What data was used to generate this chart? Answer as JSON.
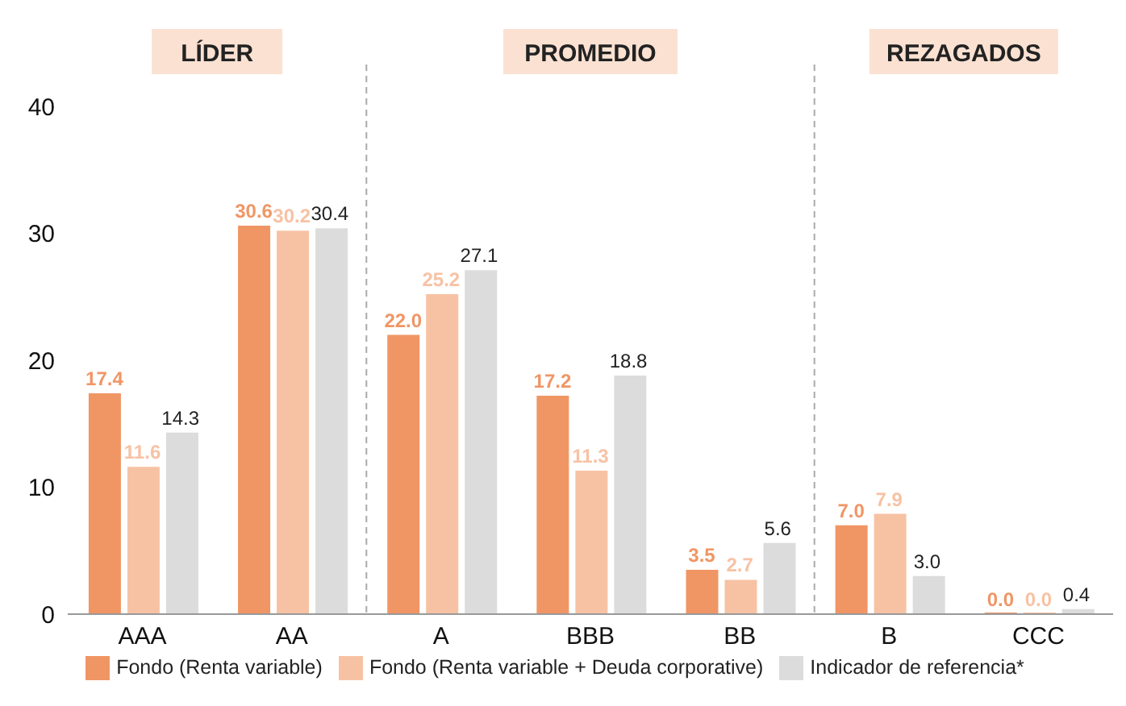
{
  "chart_data": {
    "type": "bar",
    "categories": [
      "AAA",
      "AA",
      "A",
      "BBB",
      "BB",
      "B",
      "CCC"
    ],
    "series": [
      {
        "name": "Fondo (Renta variable)",
        "color": "#f09665",
        "values": [
          17.4,
          30.6,
          22.0,
          17.2,
          3.5,
          7.0,
          0
        ],
        "value_labels": [
          "17.4",
          "30.6",
          "22.0",
          "17.2",
          "3.5",
          "7.0",
          "0.0"
        ]
      },
      {
        "name": "Fondo (Renta variable + Deuda corporative)",
        "color": "#f7c2a4",
        "values": [
          11.6,
          30.2,
          25.2,
          11.3,
          2.7,
          7.9,
          0
        ],
        "value_labels": [
          "11.6",
          "30.2",
          "25.2",
          "11.3",
          "2.7",
          "7.9",
          "0.0"
        ]
      },
      {
        "name": "Indicador de referencia*",
        "color": "#dcdcdc",
        "values": [
          14.3,
          30.4,
          27.1,
          18.8,
          5.6,
          3.0,
          0.4
        ],
        "value_labels": [
          "14.3",
          "30.4",
          "27.1",
          "18.8",
          "5.6",
          "3.0",
          "0.4"
        ]
      }
    ],
    "ylim": [
      0,
      40
    ],
    "yticks": [
      0,
      10,
      20,
      30,
      40
    ],
    "grid": false,
    "legend": "bottom",
    "annotations": [
      "LÍDER",
      "PROMEDIO",
      "REZAGADOS"
    ]
  }
}
